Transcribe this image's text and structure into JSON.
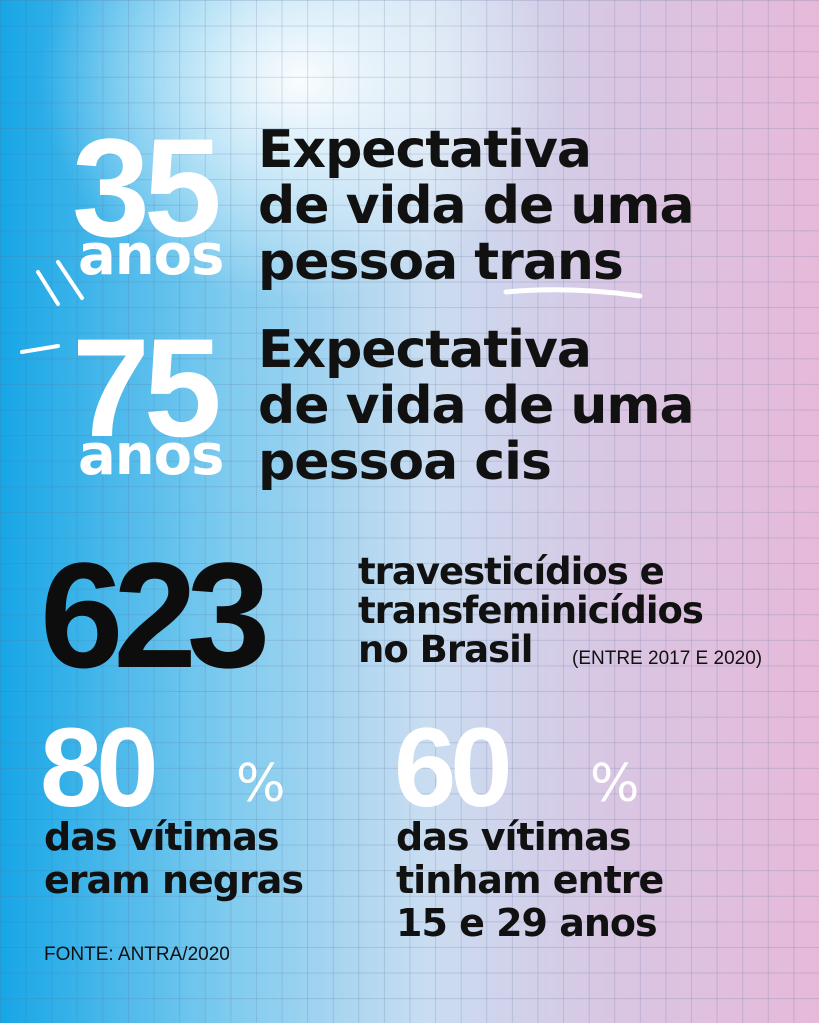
{
  "stats": [
    {
      "number": "35",
      "unit": "anos",
      "lines": [
        "Expectativa",
        "de vida de uma",
        "pessoa trans"
      ]
    },
    {
      "number": "75",
      "unit": "anos",
      "lines": [
        "Expectativa",
        "de vida de uma",
        "pessoa cis"
      ]
    },
    {
      "number": "623",
      "lines": [
        "travesticídios e",
        "transfeminicídios",
        "no Brasil"
      ],
      "note": "(ENTRE 2017 E 2020)"
    },
    {
      "number": "80",
      "unit": "%",
      "lines": [
        "das vítimas",
        "eram negras"
      ]
    },
    {
      "number": "60",
      "unit": "%",
      "lines": [
        "das vítimas",
        "tinham entre",
        "15 e 29 anos"
      ]
    }
  ],
  "source": "FONTE: ANTRA/2020"
}
